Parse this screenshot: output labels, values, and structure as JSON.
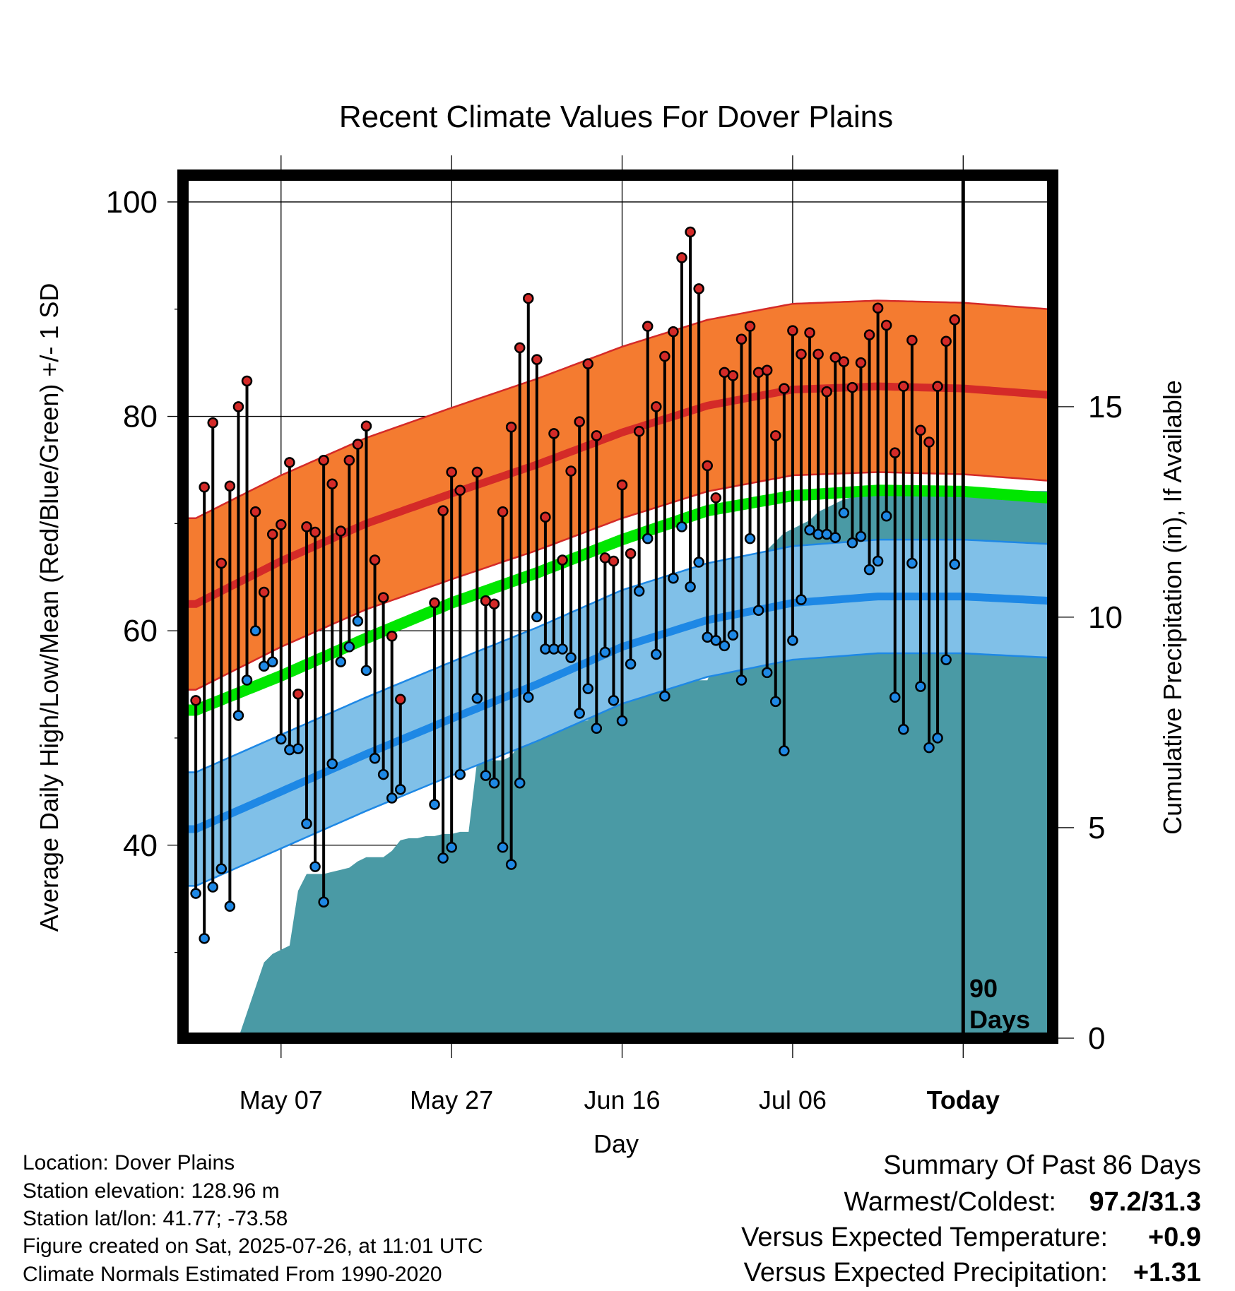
{
  "chart_data": {
    "type": "line",
    "title": "Recent Climate Values For Dover Plains",
    "xlabel": "Day",
    "ylabel": "Average Daily High/Low/Mean (Red/Blue/Green) +/- 1 SD",
    "y2label": "Cumulative Precipitation (in), If Available",
    "x_tick_labels": [
      "May 07",
      "May 27",
      "Jun 16",
      "Jul 06",
      "Today"
    ],
    "y_ticks": [
      "40",
      "60",
      "80",
      "100"
    ],
    "y2_ticks": [
      "0",
      "5",
      "10",
      "15"
    ],
    "ylim": [
      22,
      102.5
    ],
    "y2lim": [
      0,
      20.5
    ],
    "window_label": [
      "90",
      "Days"
    ],
    "colors": {
      "high_band": "#f47b30",
      "high_mean": "#d42a28",
      "low_band": "#80c0e8",
      "low_mean": "#1e88e5",
      "daily_mean": "#00e600",
      "precip": "#4a9aa5",
      "high_point": "#d42a28",
      "low_point": "#1e88e5"
    },
    "normal_days": [
      -90,
      -80,
      -70,
      -60,
      -50,
      -40,
      -30,
      -20,
      -10,
      0,
      10
    ],
    "normal_high": [
      62.5,
      66.5,
      70,
      72.8,
      75.5,
      78.5,
      81,
      82.5,
      82.8,
      82.6,
      82
    ],
    "normal_low": [
      41.5,
      45,
      48.5,
      51.8,
      55,
      58.5,
      61,
      62.6,
      63.2,
      63.2,
      62.8
    ],
    "normal_mean": [
      52.6,
      55.8,
      59.3,
      62.6,
      65.4,
      68.5,
      71.2,
      72.6,
      73.1,
      73.0,
      72.4
    ],
    "sd_high": 8,
    "sd_low": 5.3,
    "obs_days": [
      -90,
      -89,
      -88,
      -87,
      -86,
      -85,
      -84,
      -83,
      -82,
      -81,
      -80,
      -79,
      -78,
      -77,
      -76,
      -75,
      -74,
      -73,
      -72,
      -71,
      -70,
      -69,
      -68,
      -67,
      -66,
      -65,
      -64,
      -63,
      -62,
      -61,
      -60,
      -59,
      -58,
      -57,
      -56,
      -55,
      -54,
      -53,
      -52,
      -51,
      -50,
      -49,
      -48,
      -47,
      -46,
      -45,
      -44,
      -43,
      -42,
      -41,
      -40,
      -39,
      -38,
      -37,
      -36,
      -35,
      -34,
      -33,
      -32,
      -31,
      -30,
      -29,
      -28,
      -27,
      -26,
      -25,
      -24,
      -23,
      -22,
      -21,
      -20,
      -19,
      -18,
      -17,
      -16,
      -15,
      -14,
      -13,
      -12,
      -11,
      -10,
      -9,
      -8,
      -7,
      -6,
      -5,
      -4,
      -3,
      -2,
      -1
    ],
    "obs_high": [
      53.5,
      73.4,
      79.4,
      66.3,
      73.5,
      80.9,
      83.3,
      71.1,
      63.6,
      69.0,
      69.9,
      75.7,
      54.1,
      69.7,
      69.2,
      75.9,
      73.7,
      69.3,
      75.9,
      77.4,
      79.1,
      66.6,
      63.1,
      59.5,
      53.6,
      null,
      null,
      null,
      62.6,
      71.2,
      74.8,
      73.1,
      null,
      74.8,
      62.8,
      62.5,
      71.1,
      79.0,
      86.4,
      91.0,
      85.3,
      70.6,
      78.4,
      66.6,
      74.9,
      79.5,
      84.9,
      78.2,
      66.8,
      66.5,
      73.6,
      67.2,
      78.6,
      88.4,
      80.9,
      85.6,
      87.9,
      94.8,
      97.2,
      91.9,
      75.4,
      72.4,
      84.1,
      83.8,
      87.2,
      88.4,
      84.1,
      84.3,
      78.2,
      82.6,
      88.0,
      85.8,
      87.8,
      85.8,
      82.3,
      85.5,
      85.1,
      82.7,
      85.0,
      87.6,
      90.1,
      88.5,
      76.6,
      82.8,
      87.1,
      78.7,
      77.6,
      82.8,
      87.0,
      89.0
    ],
    "obs_low": [
      35.5,
      31.3,
      36.1,
      37.8,
      34.3,
      52.1,
      55.4,
      60.0,
      56.7,
      57.1,
      49.9,
      48.9,
      49.0,
      42.0,
      38.0,
      34.7,
      47.6,
      57.1,
      58.5,
      60.9,
      56.3,
      48.1,
      46.6,
      44.4,
      45.2,
      null,
      null,
      null,
      43.8,
      38.8,
      39.8,
      46.6,
      null,
      53.7,
      46.5,
      45.8,
      39.8,
      38.2,
      45.8,
      53.8,
      61.3,
      58.3,
      58.3,
      58.3,
      57.5,
      52.3,
      54.6,
      50.9,
      58.0,
      53.5,
      51.6,
      56.9,
      63.7,
      68.6,
      57.8,
      53.9,
      64.9,
      69.7,
      64.1,
      66.4,
      59.4,
      59.1,
      58.6,
      59.6,
      55.4,
      68.6,
      61.9,
      56.1,
      53.4,
      48.8,
      59.1,
      62.9,
      69.4,
      69.0,
      69.0,
      68.7,
      71.0,
      68.2,
      68.8,
      65.7,
      66.5,
      70.7,
      53.8,
      50.8,
      66.3,
      54.8,
      49.1,
      50.0,
      57.3,
      66.2
    ],
    "precip_days": [
      -90,
      -85,
      -84,
      -83,
      -82,
      -81,
      -80,
      -79,
      -78,
      -77,
      -76,
      -75,
      -74,
      -73,
      -72,
      -71,
      -70,
      -69,
      -68,
      -67,
      -66,
      -65,
      -64,
      -63,
      -62,
      -61,
      -60,
      -59,
      -58,
      -57,
      -56,
      -55,
      -54,
      -53,
      -52,
      -51,
      -50,
      -49,
      -48,
      -47,
      -46,
      -45,
      -44,
      -43,
      -42,
      -41,
      -40,
      -39,
      -38,
      -37,
      -36,
      -35,
      -34,
      -33,
      -32,
      -31,
      -30,
      -29,
      -28,
      -27,
      -26,
      -25,
      -24,
      -23,
      -22,
      -21,
      -20,
      -19,
      -18,
      -17,
      -16,
      -15,
      -14,
      -13,
      -12,
      -11,
      -10,
      -9,
      -8,
      -7,
      -6,
      -5,
      -4,
      -3,
      -2,
      -1,
      0,
      10
    ],
    "precip_cum": [
      0,
      0,
      0.6,
      1.2,
      1.8,
      2.0,
      2.1,
      2.2,
      3.5,
      3.9,
      3.9,
      3.9,
      3.95,
      4.0,
      4.05,
      4.2,
      4.3,
      4.3,
      4.3,
      4.45,
      4.7,
      4.75,
      4.75,
      4.8,
      4.8,
      4.85,
      4.85,
      4.9,
      4.9,
      6.6,
      6.6,
      6.6,
      6.6,
      6.7,
      7.0,
      7.3,
      7.4,
      7.45,
      7.45,
      7.5,
      7.5,
      7.5,
      7.55,
      8.0,
      8.2,
      8.2,
      8.25,
      8.25,
      8.35,
      8.4,
      8.4,
      8.45,
      8.45,
      8.45,
      8.5,
      8.5,
      8.5,
      9.0,
      9.3,
      9.4,
      9.6,
      9.75,
      9.9,
      11.6,
      11.8,
      12.0,
      12.1,
      12.2,
      12.3,
      12.5,
      12.6,
      12.7,
      12.8,
      12.85,
      12.85,
      12.9,
      12.9,
      12.9,
      12.9,
      12.9,
      12.9,
      13.0,
      13.0,
      13.0,
      13.0,
      13.0,
      13.0,
      13.0
    ]
  },
  "footer": {
    "location": "Location: Dover Plains",
    "elevation": "Station elevation: 128.96 m",
    "latlon": "Station lat/lon: 41.77; -73.58",
    "created": "Figure created on Sat, 2025-07-26, at 11:01 UTC",
    "normals": "Climate Normals Estimated From 1990-2020"
  },
  "summary": {
    "title": "Summary Of Past 86 Days",
    "warm_cold_label": "Warmest/Coldest:",
    "warm_cold_value": "97.2/31.3",
    "temp_label": "Versus Expected Temperature:",
    "temp_value": "+0.9",
    "temp_color": "#d42a28",
    "precip_label": "Versus Expected Precipitation:",
    "precip_value": "+1.31",
    "precip_color": "#00e600"
  }
}
